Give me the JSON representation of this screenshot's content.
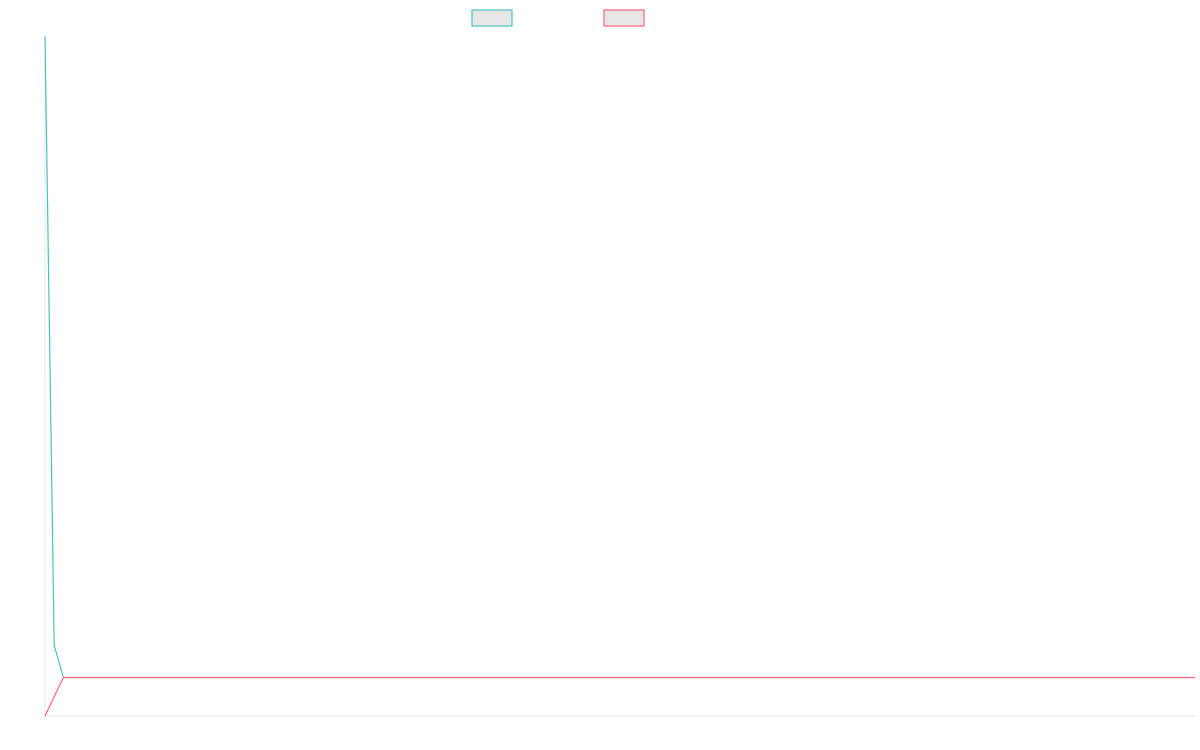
{
  "chart_data": {
    "type": "line",
    "grid": false,
    "legend_placement": "top-center",
    "series": [
      {
        "name": "",
        "color": "#4bc0c0",
        "legend_fill": "#e6e6e6",
        "points": [
          {
            "x": 0,
            "y": 100
          },
          {
            "x": 0.8,
            "y": 5
          },
          {
            "x": 1.6,
            "y": 0
          },
          {
            "x": 100,
            "y": 0
          }
        ]
      },
      {
        "name": "",
        "color": "#ff6384",
        "legend_fill": "#e6e6e6",
        "points": [
          {
            "x": 0,
            "y": -6
          },
          {
            "x": 1.6,
            "y": 0
          },
          {
            "x": 100,
            "y": 0
          }
        ]
      }
    ],
    "xlim": [
      0,
      100
    ],
    "ylim": [
      -6,
      100
    ],
    "xlabel": "",
    "ylabel": "",
    "title": ""
  }
}
